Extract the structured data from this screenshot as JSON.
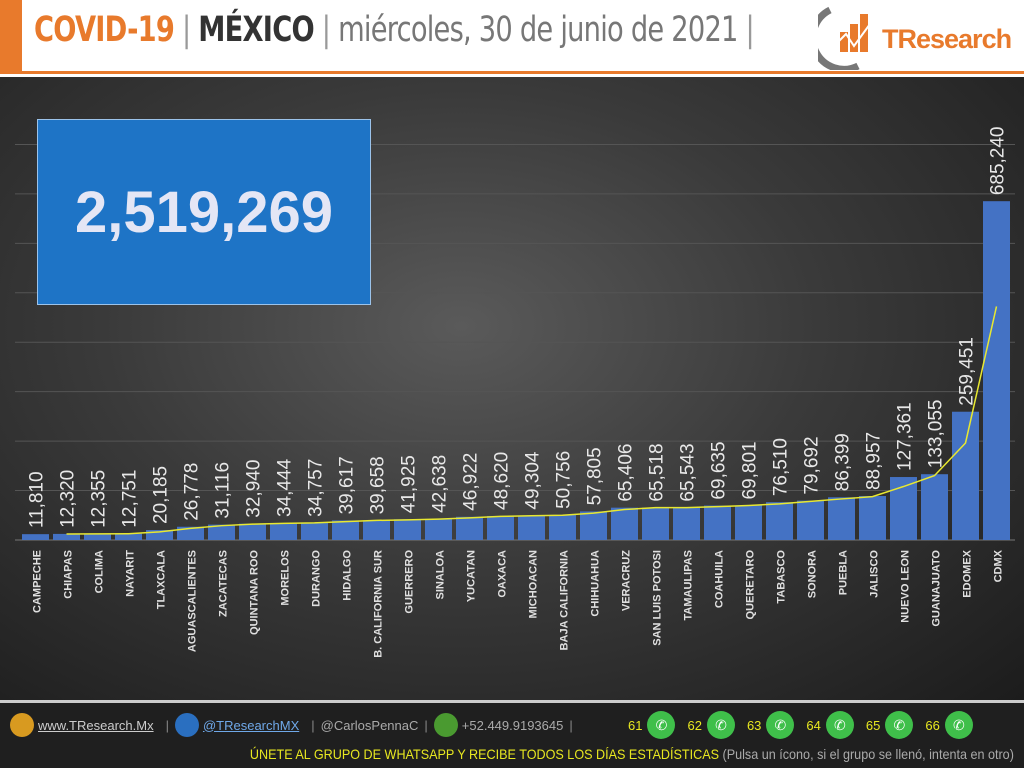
{
  "header": {
    "title1": "COVID-19",
    "sep": "|",
    "title2": "MÉXICO",
    "date": "miércoles, 30 de junio de 2021",
    "sep_end": "|",
    "logo_text": "TResearch"
  },
  "total": "2,519,269",
  "chart_data": {
    "type": "bar",
    "categories": [
      "CAMPECHE",
      "CHIAPAS",
      "COLIMA",
      "NAYARIT",
      "TLAXCALA",
      "AGUASCALIENTES",
      "ZACATECAS",
      "QUINTANA ROO",
      "MORELOS",
      "DURANGO",
      "HIDALGO",
      "B. CALIFORNIA SUR",
      "GUERRERO",
      "SINALOA",
      "YUCATAN",
      "OAXACA",
      "MICHOACAN",
      "BAJA CALIFORNIA",
      "CHIHUAHUA",
      "VERACRUZ",
      "SAN LUIS POTOSI",
      "TAMAULIPAS",
      "COAHUILA",
      "QUERETARO",
      "TABASCO",
      "SONORA",
      "PUEBLA",
      "JALISCO",
      "NUEVO LEON",
      "GUANAJUATO",
      "EDOMEX",
      "CDMX"
    ],
    "values": [
      11810,
      12320,
      12355,
      12751,
      20185,
      26778,
      31116,
      32940,
      34444,
      34757,
      39617,
      39658,
      41925,
      42638,
      46922,
      48620,
      49304,
      50756,
      57805,
      65406,
      65518,
      65543,
      69635,
      69801,
      76510,
      79692,
      86399,
      88957,
      127361,
      133055,
      259451,
      685240
    ],
    "labels": [
      "11,810",
      "12,320",
      "12,355",
      "12,751",
      "20,185",
      "26,778",
      "31,116",
      "32,940",
      "34,444",
      "34,757",
      "39,617",
      "39,658",
      "41,925",
      "42,638",
      "46,922",
      "48,620",
      "49,304",
      "50,756",
      "57,805",
      "65,406",
      "65,518",
      "65,543",
      "69,635",
      "69,801",
      "76,510",
      "79,692",
      "86,399",
      "88,957",
      "127,361",
      "133,055",
      "259,451",
      "685,240"
    ],
    "trendline": "2-period moving average",
    "ylim": [
      0,
      900000
    ],
    "grid": true,
    "bar_color": "#4472c4",
    "trend_color": "#e8e830"
  },
  "footer": {
    "website": "www.TResearch.Mx",
    "twitter": "@TResearchMX",
    "personal": "@CarlosPennaC",
    "phone": "+52.449.9193645",
    "whatsapp_groups": [
      "61",
      "62",
      "63",
      "64",
      "65",
      "66"
    ],
    "cta": "ÚNETE AL GRUPO DE WHATSAPP Y RECIBE TODOS LOS DÍAS ESTADÍSTICAS",
    "cta_note": "(Pulsa un ícono, si el grupo se llenó, intenta en otro)",
    "sep": "|"
  }
}
